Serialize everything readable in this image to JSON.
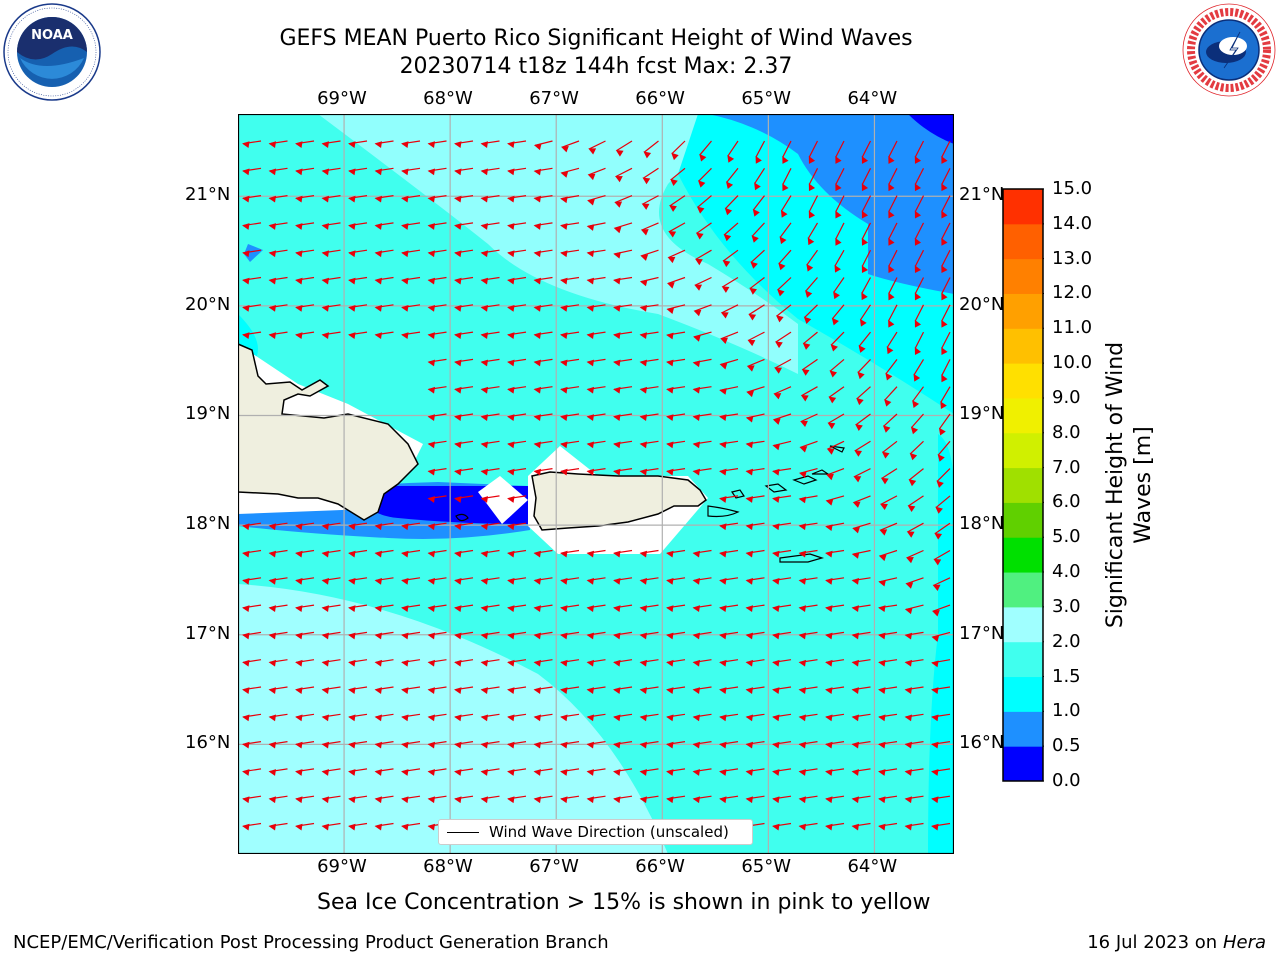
{
  "title_line1": "GEFS MEAN Puerto Rico Significant Height of Wind Waves",
  "title_line2": "20230714 t18z 144h fcst   Max: 2.37",
  "subtitle": "Sea Ice Concentration > 15% is shown in pink to yellow",
  "footer_left": "NCEP/EMC/Verification Post Processing Product Generation Branch",
  "footer_right_prefix": "16 Jul 2023 on ",
  "footer_right_host": "Hera",
  "legend_label": "Wind Wave Direction (unscaled)",
  "logos": {
    "left": "noaa-logo",
    "right": "national-weather-service-logo"
  },
  "map": {
    "lon_range": [
      -70,
      -63.25
    ],
    "lat_range": [
      15,
      21.75
    ],
    "lon_labels": [
      "69°W",
      "68°W",
      "67°W",
      "66°W",
      "65°W",
      "64°W"
    ],
    "lat_labels": [
      "16°N",
      "17°N",
      "18°N",
      "19°N",
      "20°N",
      "21°N"
    ],
    "grid": true,
    "vector_color": "#e8000b"
  },
  "colorbar": {
    "label": "Significant Height of Wind Waves [m]",
    "label_line1": "Significant Height of Wind",
    "label_line2": "Waves [m]",
    "levels": [
      "0.0",
      "0.5",
      "1.0",
      "1.5",
      "2.0",
      "3.0",
      "4.0",
      "5.0",
      "6.0",
      "7.0",
      "8.0",
      "9.0",
      "10.0",
      "11.0",
      "12.0",
      "13.0",
      "14.0",
      "15.0"
    ],
    "colors": [
      "#0000ff",
      "#1e90ff",
      "#00ffff",
      "#40ffee",
      "#a0ffff",
      "#50f080",
      "#00e000",
      "#60d000",
      "#a0e000",
      "#d0f000",
      "#f0f000",
      "#ffe000",
      "#ffc000",
      "#ffa000",
      "#ff8000",
      "#ff6000",
      "#ff3000"
    ]
  },
  "chart_data": {
    "type": "map",
    "field": "Significant Height of Wind Waves [m]",
    "max": 2.37,
    "vectors": "Wind Wave Direction (unscaled)"
  }
}
